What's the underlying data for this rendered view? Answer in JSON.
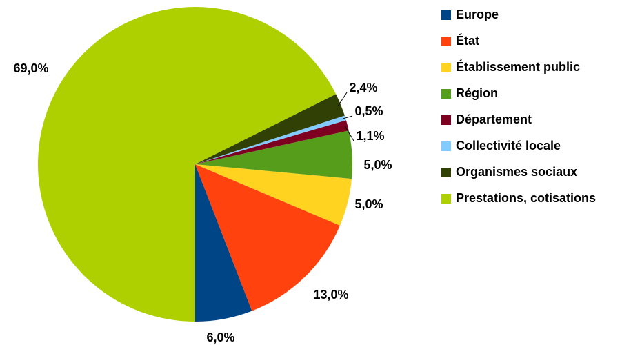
{
  "chart_data": {
    "type": "pie",
    "categories": [
      "Europe",
      "État",
      "Établissement public",
      "Région",
      "Département",
      "Collectivité locale",
      "Organismes sociaux",
      "Prestations, cotisations"
    ],
    "values": [
      6.0,
      13.0,
      5.0,
      5.0,
      1.1,
      0.5,
      2.4,
      69.0
    ],
    "value_labels": [
      "6,0%",
      "13,0%",
      "5,0%",
      "5,0%",
      "1,1%",
      "0,5%",
      "2,4%",
      "69,0%"
    ],
    "colors": [
      "#004586",
      "#ff420e",
      "#ffd320",
      "#579d1c",
      "#7e0021",
      "#83caff",
      "#314004",
      "#aecf00"
    ],
    "legend": "right"
  }
}
